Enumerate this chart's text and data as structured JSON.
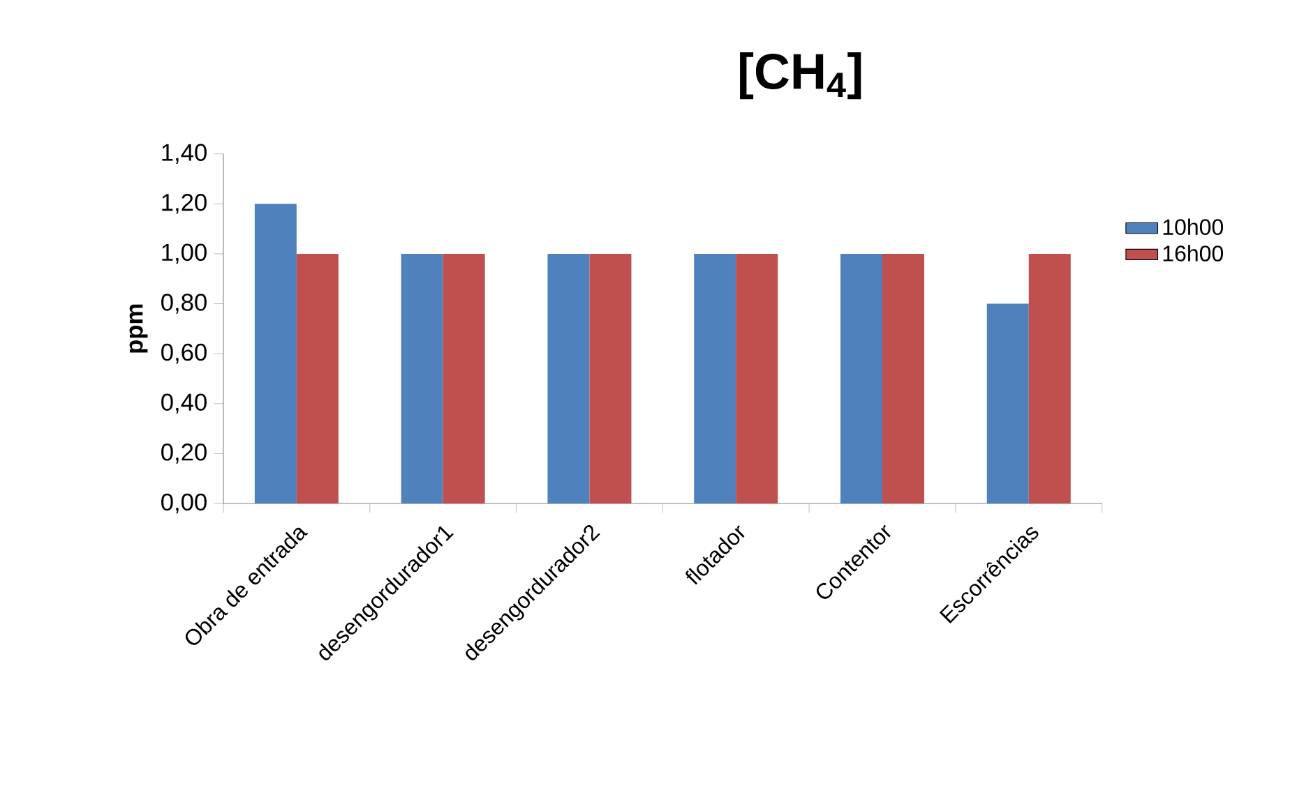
{
  "chart_data": {
    "type": "bar",
    "title": "[CH$_{4}$]",
    "ylabel": "ppm",
    "categories": [
      "Obra de entrada",
      "desengordurador1",
      "desengordurador2",
      "flotador",
      "Contentor",
      "Escorrências"
    ],
    "series": [
      {
        "name": "10h00",
        "color": "#4f81bd",
        "values": [
          1.2,
          1.0,
          1.0,
          1.0,
          1.0,
          0.8
        ]
      },
      {
        "name": "16h00",
        "color": "#c0504d",
        "values": [
          1.0,
          1.0,
          1.0,
          1.0,
          1.0,
          1.0
        ]
      }
    ],
    "ylim": [
      0,
      1.4
    ],
    "yticks": [
      {
        "value": 0,
        "label": "0,00"
      },
      {
        "value": 0.2,
        "label": "0,20"
      },
      {
        "value": 0.4,
        "label": "0,40"
      },
      {
        "value": 0.6,
        "label": "0,60"
      },
      {
        "value": 0.8,
        "label": "0,80"
      },
      {
        "value": 1.0,
        "label": "1,00"
      },
      {
        "value": 1.2,
        "label": "1,20"
      },
      {
        "value": 1.4,
        "label": "1,40"
      }
    ],
    "legend": "right"
  }
}
